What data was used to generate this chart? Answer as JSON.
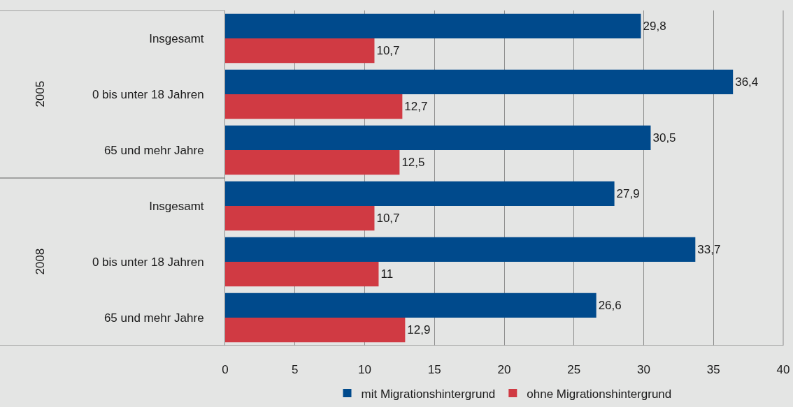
{
  "chart_data": {
    "type": "bar",
    "orientation": "horizontal",
    "categories": [
      "Insgesamt",
      "0 bis unter 18 Jahren",
      "65 und mehr Jahre",
      "Insgesamt",
      "0 bis unter 18 Jahren",
      "65 und mehr Jahre"
    ],
    "series": [
      {
        "name": "mit Migrationshintergrund",
        "color": "#004a8c",
        "values": [
          29.8,
          36.4,
          30.5,
          27.9,
          33.7,
          26.6
        ],
        "value_labels": [
          "29,8",
          "36,4",
          "30,5",
          "27,9",
          "33,7",
          "26,6"
        ]
      },
      {
        "name": "ohne Migrationshintergrund",
        "color": "#d03a43",
        "values": [
          10.7,
          12.7,
          12.5,
          10.7,
          11,
          12.9
        ],
        "value_labels": [
          "10,7",
          "12,7",
          "12,5",
          "10,7",
          "11",
          "12,9"
        ]
      }
    ],
    "annotations": [
      "2005",
      "2008"
    ],
    "xlim": [
      0,
      40
    ],
    "xticks": [
      0,
      5,
      10,
      15,
      20,
      25,
      30,
      35,
      40
    ],
    "grid": "x",
    "legend": "bottom"
  }
}
